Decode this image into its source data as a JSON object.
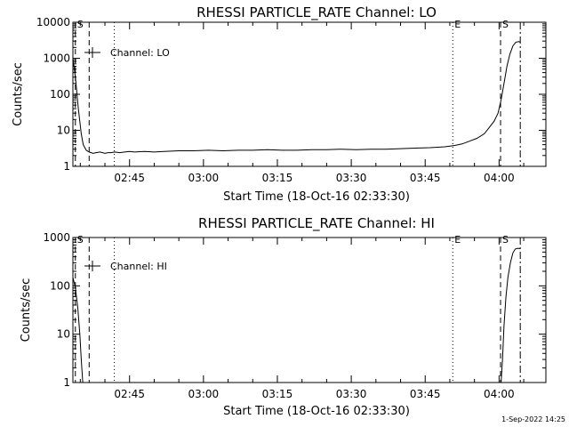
{
  "footer": {
    "timestamp": "1-Sep-2022 14:25"
  },
  "chart_data": [
    {
      "type": "line",
      "title": "RHESSI PARTICLE_RATE Channel: LO",
      "xlabel": "Start Time (18-Oct-16 02:33:30)",
      "ylabel": "Counts/sec",
      "x_ticks": [
        "02:45",
        "03:00",
        "03:15",
        "03:30",
        "03:45",
        "04:00"
      ],
      "x_tick_minutes": [
        165,
        180,
        195,
        210,
        225,
        240
      ],
      "xlim_minutes": [
        153.5,
        249.5
      ],
      "y_scale": "log",
      "ylim": [
        1,
        10000
      ],
      "y_ticks": [
        "1",
        "10",
        "100",
        "1000",
        "10000"
      ],
      "legend": "Channel: LO",
      "markers": [
        {
          "label": "S",
          "minute": 154.0,
          "style": "dashed",
          "labeled": true
        },
        {
          "label": "",
          "minute": 156.8,
          "style": "dashed",
          "labeled": false
        },
        {
          "label": "",
          "minute": 161.9,
          "style": "dotted",
          "labeled": false
        },
        {
          "label": "E",
          "minute": 230.6,
          "style": "dotted",
          "labeled": true
        },
        {
          "label": "S",
          "minute": 240.3,
          "style": "dashed",
          "labeled": true
        },
        {
          "label": "",
          "minute": 244.3,
          "style": "dashdot",
          "labeled": false
        }
      ],
      "series": [
        {
          "x": [
            153.5,
            154.0,
            154.6,
            155.2,
            155.6,
            156.2,
            156.8,
            157.2,
            157.6,
            158.2,
            159.0,
            160.0,
            160.6,
            161.2,
            162.0,
            163.0,
            164.0,
            165.0,
            166.0,
            168.0,
            170.0,
            172.0,
            175.0,
            178.0,
            181.0,
            184.0,
            187.0,
            190.0,
            193.0,
            196.0,
            199.0,
            202.0,
            205.0,
            208.0,
            211.0,
            214.0,
            217.0,
            220.0,
            223.0,
            226.0,
            229.0,
            231.0,
            232.5,
            234.0,
            235.5,
            237.0,
            238.0,
            239.0,
            239.8,
            240.4,
            241.0,
            241.6,
            242.2,
            242.8,
            243.4,
            244.0,
            244.3
          ],
          "y": [
            1000,
            300,
            40,
            8,
            4,
            2.8,
            2.5,
            2.4,
            2.3,
            2.4,
            2.5,
            2.3,
            2.4,
            2.4,
            2.5,
            2.4,
            2.5,
            2.6,
            2.5,
            2.6,
            2.5,
            2.6,
            2.7,
            2.7,
            2.8,
            2.7,
            2.8,
            2.8,
            2.9,
            2.8,
            2.8,
            2.9,
            2.9,
            3.0,
            2.9,
            3.0,
            3.0,
            3.1,
            3.2,
            3.3,
            3.5,
            3.8,
            4.2,
            5.0,
            6.0,
            8.0,
            12,
            18,
            30,
            70,
            200,
            600,
            1300,
            2200,
            2800,
            2900,
            2800
          ]
        }
      ]
    },
    {
      "type": "line",
      "title": "RHESSI PARTICLE_RATE Channel: HI",
      "xlabel": "Start Time (18-Oct-16 02:33:30)",
      "ylabel": "Counts/sec",
      "x_ticks": [
        "02:45",
        "03:00",
        "03:15",
        "03:30",
        "03:45",
        "04:00"
      ],
      "x_tick_minutes": [
        165,
        180,
        195,
        210,
        225,
        240
      ],
      "xlim_minutes": [
        153.5,
        249.5
      ],
      "y_scale": "log",
      "ylim": [
        1,
        1000
      ],
      "y_ticks": [
        "1",
        "10",
        "100",
        "1000"
      ],
      "legend": "Channel: HI",
      "markers": [
        {
          "label": "S",
          "minute": 154.0,
          "style": "dashed",
          "labeled": true
        },
        {
          "label": "",
          "minute": 156.8,
          "style": "dashed",
          "labeled": false
        },
        {
          "label": "",
          "minute": 161.9,
          "style": "dotted",
          "labeled": false
        },
        {
          "label": "E",
          "minute": 230.6,
          "style": "dotted",
          "labeled": true
        },
        {
          "label": "S",
          "minute": 240.3,
          "style": "dashed",
          "labeled": true
        },
        {
          "label": "",
          "minute": 244.3,
          "style": "dashdot",
          "labeled": false
        }
      ],
      "series": [
        {
          "x": [
            153.5,
            154.0,
            154.5,
            154.9,
            155.2,
            155.5,
            240.4,
            240.7,
            241.0,
            241.4,
            241.8,
            242.3,
            242.8,
            243.3,
            243.8,
            244.3
          ],
          "y": [
            150,
            90,
            35,
            10,
            3,
            1,
            1,
            3,
            15,
            60,
            150,
            300,
            480,
            580,
            600,
            590
          ]
        }
      ]
    }
  ]
}
